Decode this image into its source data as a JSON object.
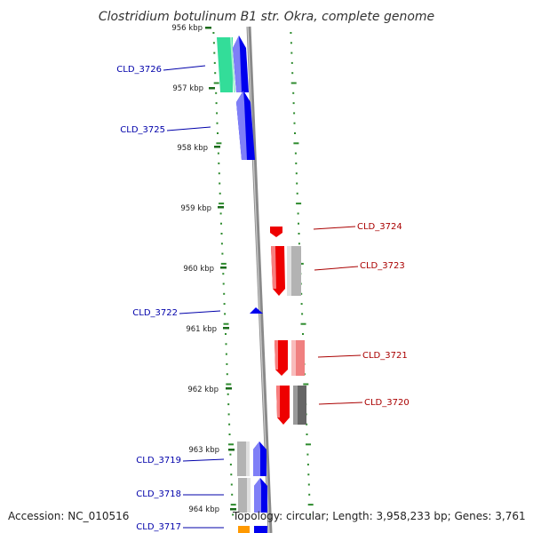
{
  "title": "Clostridium botulinum B1 str. Okra, complete genome",
  "accession": "Accession: NC_010516",
  "topology": "Topology: circular; Length: 3,958,233 bp; Genes: 3,761",
  "colors": {
    "forward": "#0000ee",
    "reverse": "#ee0000",
    "backbone": "#8a8a8a",
    "tick": "#2e8b2e",
    "green_feature": "#33dd99",
    "grey_feature": "#b3b3b3",
    "dark_grey_feature": "#666666",
    "pink_feature": "#f08080",
    "orange_feature": "#ff9900"
  },
  "scale": {
    "unit": "kbp",
    "ticks": [
      {
        "label": "956 kbp"
      },
      {
        "label": "957 kbp"
      },
      {
        "label": "958 kbp"
      },
      {
        "label": "959 kbp"
      },
      {
        "label": "960 kbp"
      },
      {
        "label": "961 kbp"
      },
      {
        "label": "962 kbp"
      },
      {
        "label": "963 kbp"
      },
      {
        "label": "964 kbp"
      }
    ]
  },
  "genes": {
    "forward": [
      {
        "label": "CLD_3726"
      },
      {
        "label": "CLD_3725"
      },
      {
        "label": "CLD_3722"
      },
      {
        "label": "CLD_3719"
      },
      {
        "label": "CLD_3718"
      },
      {
        "label": "CLD_3717"
      }
    ],
    "reverse": [
      {
        "label": "CLD_3724"
      },
      {
        "label": "CLD_3723"
      },
      {
        "label": "CLD_3721"
      },
      {
        "label": "CLD_3720"
      }
    ]
  }
}
